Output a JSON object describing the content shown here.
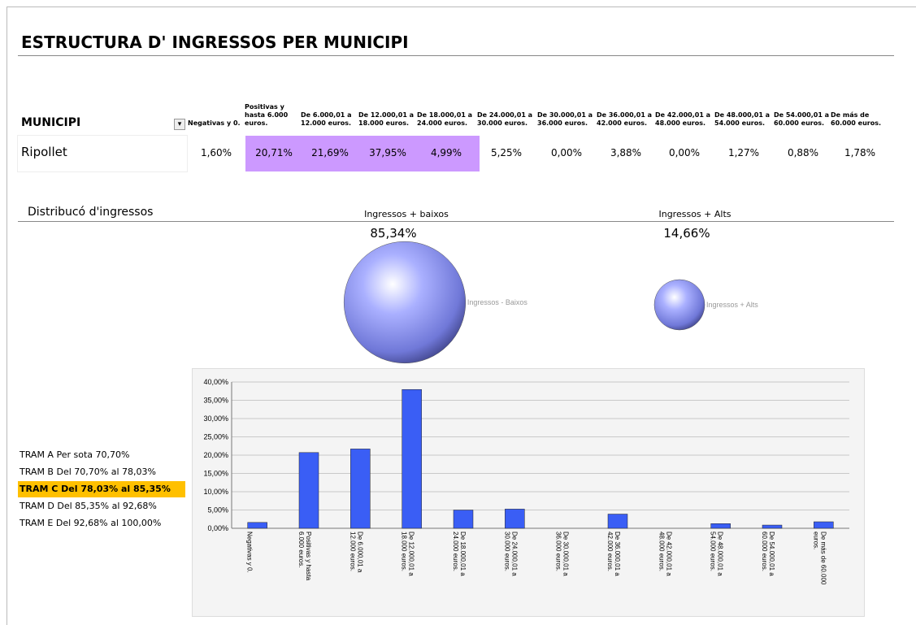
{
  "header": {
    "title": "ESTRUCTURA D' INGRESSOS PER MUNICIPI"
  },
  "table": {
    "row_header": "MUNICIPI",
    "row_name": "Ripollet",
    "values": [
      "1,60%",
      "20,71%",
      "21,69%",
      "37,95%",
      "4,99%",
      "5,25%",
      "0,00%",
      "3,88%",
      "0,00%",
      "1,27%",
      "0,88%",
      "1,78%"
    ],
    "highlight_color": "#cc99ff"
  },
  "distribution": {
    "title": "Distribucó d'ingressos",
    "groups": [
      {
        "heading": "Ingressos + baixos",
        "value": 85.34,
        "value_label": "85,34%",
        "bubble_label": "Ingressos - Baixos"
      },
      {
        "heading": "Ingressos + Alts",
        "value": 14.66,
        "value_label": "14,66%",
        "bubble_label": "Ingressos + Alts"
      }
    ]
  },
  "trams": [
    "TRAM A Per sota 70,70%",
    "TRAM B Del 70,70% al 78,03%",
    "TRAM C Del 78,03% al 85,35%",
    "TRAM D Del 85,35% al 92,68%",
    "TRAM E Del 92,68% al 100,00%"
  ],
  "chart_data": {
    "type": "bar",
    "categories": [
      "Negativas y 0.",
      "Positivas y hasta 6.000 euros.",
      "De 6.000,01 a 12.000 euros.",
      "De 12.000,01 a 18.000 euros.",
      "De 18.000,01 a 24.000 euros.",
      "De 24.000,01 a 30.000 euros.",
      "De 30.000,01 a 36.000 euros.",
      "De 36.000,01 a 42.000 euros.",
      "De 42.000,01 a 48.000 euros.",
      "De 48.000,01 a 54.000 euros.",
      "De 54.000,01 a 60.000 euros.",
      "De más de 60.000 euros."
    ],
    "values": [
      1.6,
      20.71,
      21.69,
      37.95,
      4.99,
      5.25,
      0,
      3.88,
      0,
      1.27,
      0.88,
      1.78
    ],
    "color": "#3a5ef5",
    "ylim": [
      0,
      40
    ],
    "yticks": [
      {
        "value": 0,
        "label": "0,00%"
      },
      {
        "value": 5,
        "label": "5,00%"
      },
      {
        "value": 10,
        "label": "10,00%"
      },
      {
        "value": 15,
        "label": "15,00%"
      },
      {
        "value": 20,
        "label": "20,00%"
      },
      {
        "value": 25,
        "label": "25,00%"
      },
      {
        "value": 30,
        "label": "30,00%"
      },
      {
        "value": 35,
        "label": "35,00%"
      },
      {
        "value": 40,
        "label": "40,00%"
      }
    ],
    "grid": true
  }
}
